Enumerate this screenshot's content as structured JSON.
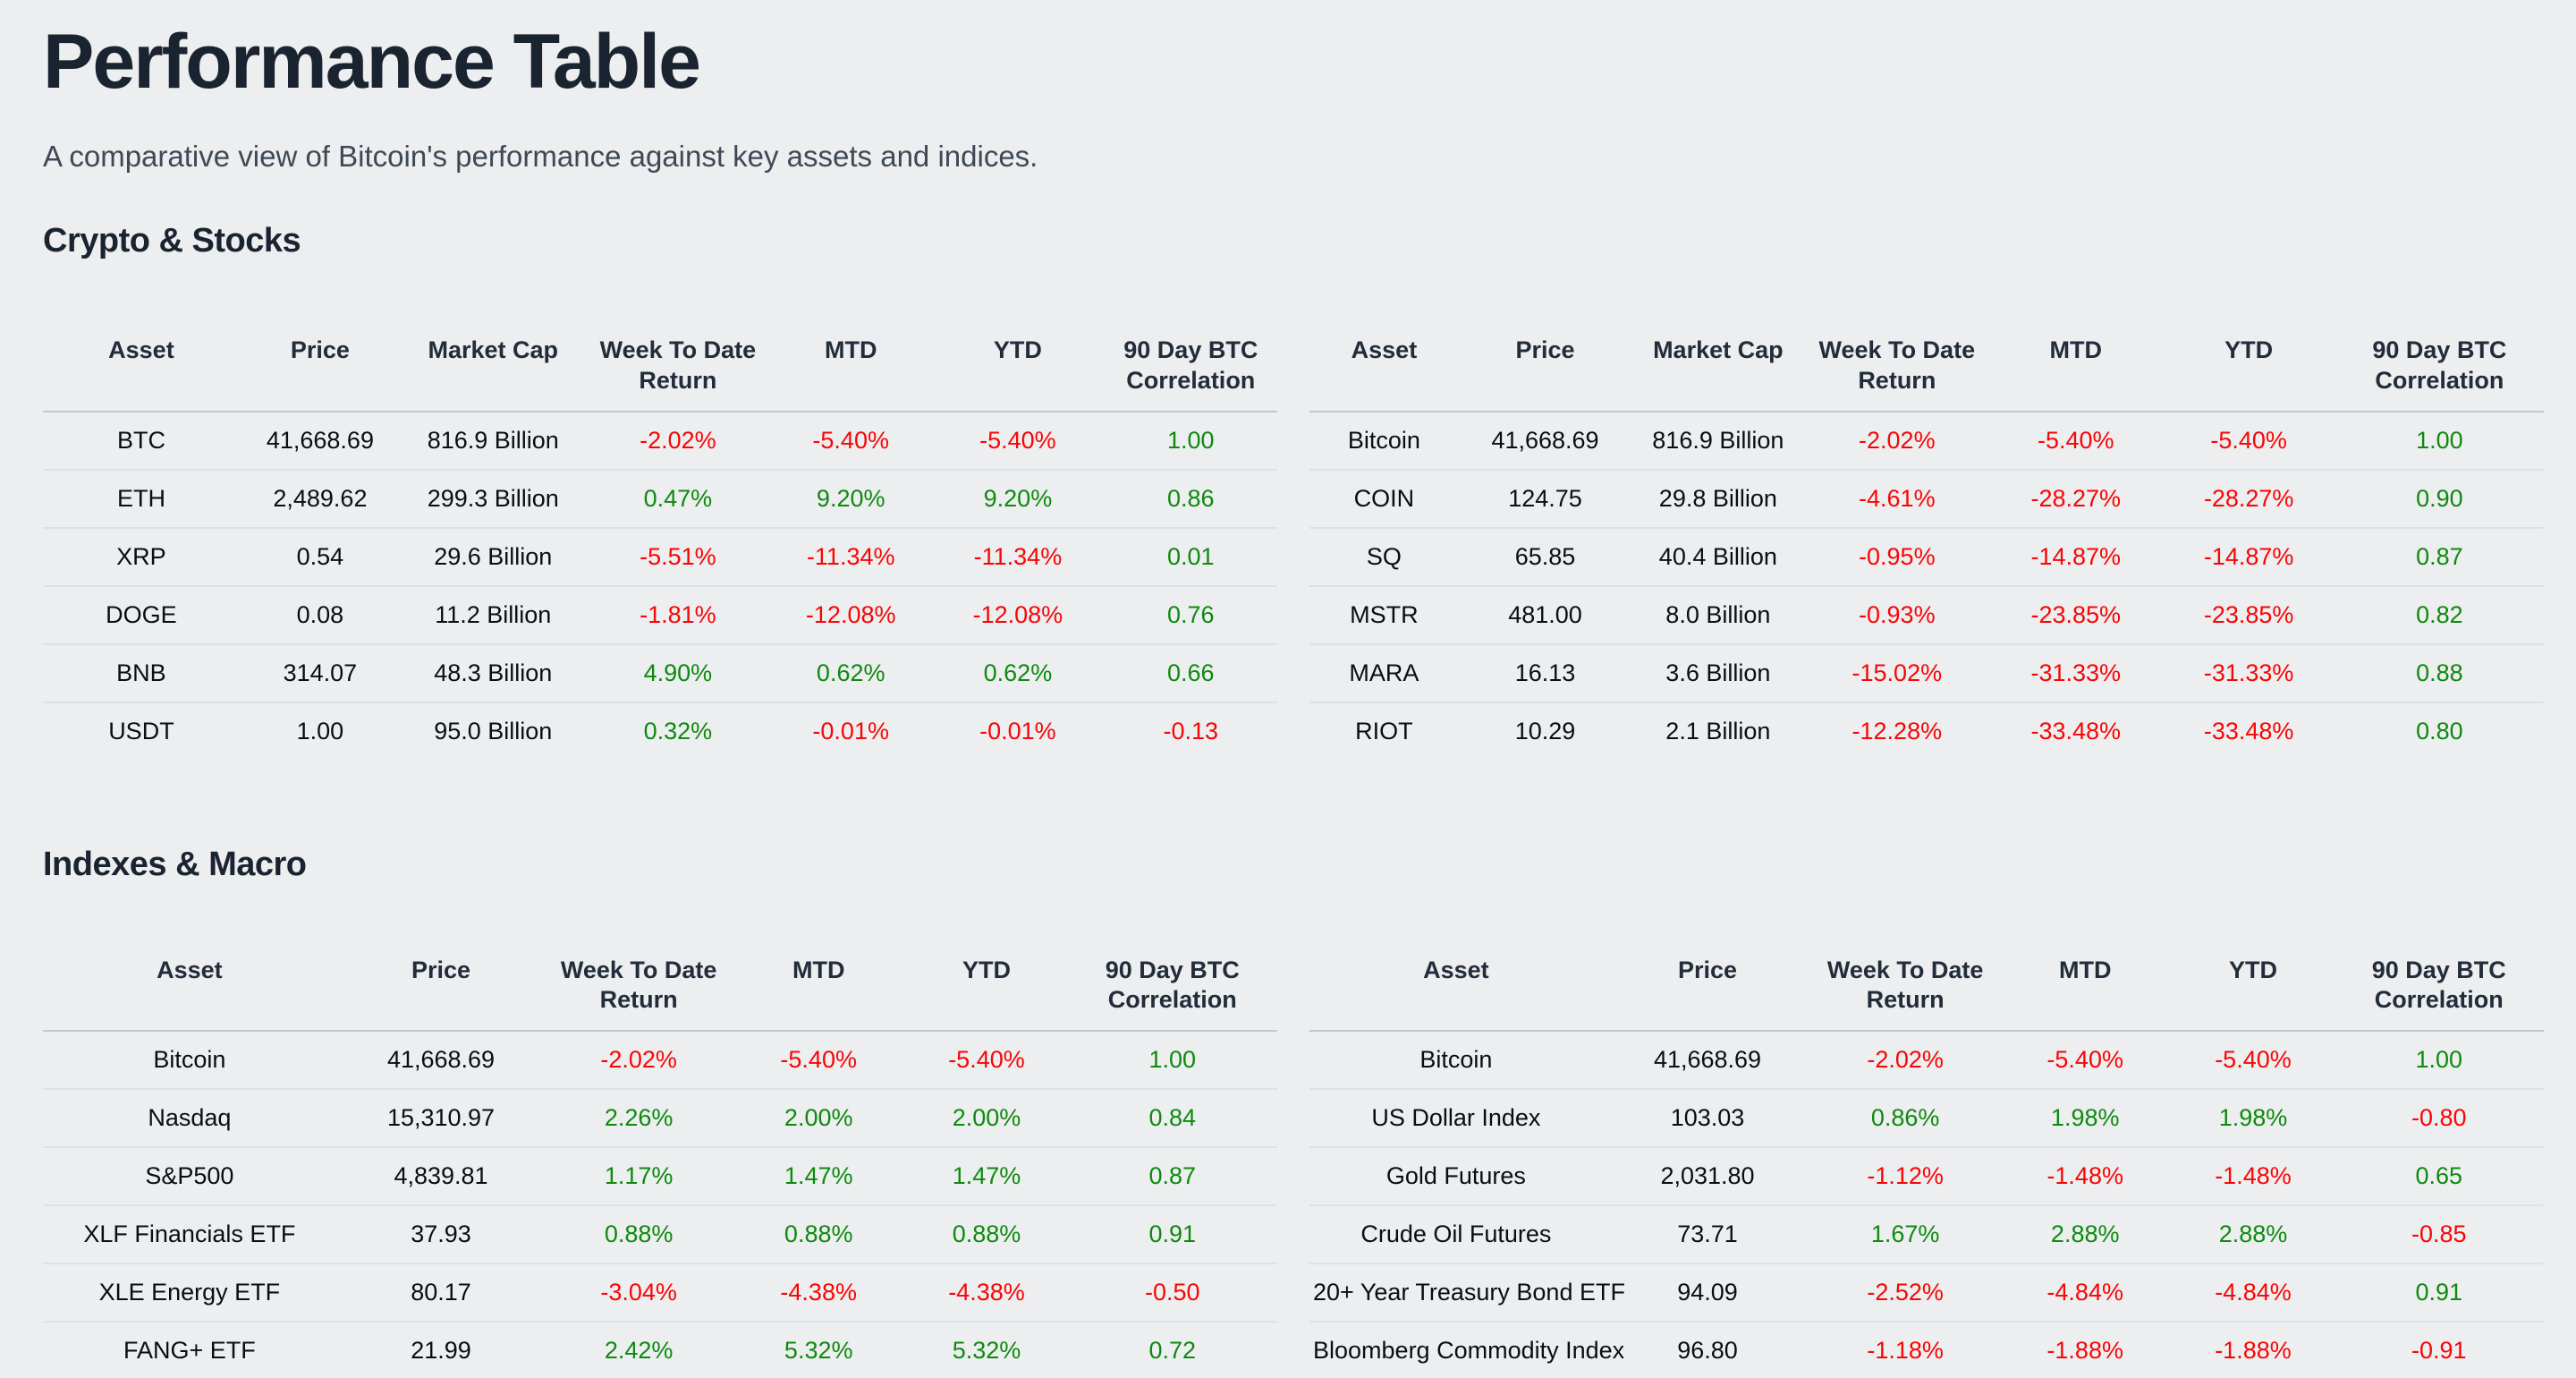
{
  "page": {
    "title": "Performance Table",
    "subtitle": "A comparative view of Bitcoin's performance against key assets and indices."
  },
  "colors": {
    "positive": "#0e8a0e",
    "negative": "#fa0505"
  },
  "sections": [
    {
      "title": "Crypto & Stocks",
      "tables": [
        {
          "columns": [
            "Asset",
            "Price",
            "Market Cap",
            "Week To Date Return",
            "MTD",
            "YTD",
            "90 Day BTC Correlation"
          ],
          "value_cols_start": 3,
          "rows": [
            [
              "BTC",
              "41,668.69",
              "816.9 Billion",
              "-2.02%",
              "-5.40%",
              "-5.40%",
              "1.00"
            ],
            [
              "ETH",
              "2,489.62",
              "299.3 Billion",
              "0.47%",
              "9.20%",
              "9.20%",
              "0.86"
            ],
            [
              "XRP",
              "0.54",
              "29.6 Billion",
              "-5.51%",
              "-11.34%",
              "-11.34%",
              "0.01"
            ],
            [
              "DOGE",
              "0.08",
              "11.2 Billion",
              "-1.81%",
              "-12.08%",
              "-12.08%",
              "0.76"
            ],
            [
              "BNB",
              "314.07",
              "48.3 Billion",
              "4.90%",
              "0.62%",
              "0.62%",
              "0.66"
            ],
            [
              "USDT",
              "1.00",
              "95.0 Billion",
              "0.32%",
              "-0.01%",
              "-0.01%",
              "-0.13"
            ]
          ]
        },
        {
          "columns": [
            "Asset",
            "Price",
            "Market Cap",
            "Week To Date Return",
            "MTD",
            "YTD",
            "90 Day BTC Correlation"
          ],
          "value_cols_start": 3,
          "rows": [
            [
              "Bitcoin",
              "41,668.69",
              "816.9 Billion",
              "-2.02%",
              "-5.40%",
              "-5.40%",
              "1.00"
            ],
            [
              "COIN",
              "124.75",
              "29.8 Billion",
              "-4.61%",
              "-28.27%",
              "-28.27%",
              "0.90"
            ],
            [
              "SQ",
              "65.85",
              "40.4 Billion",
              "-0.95%",
              "-14.87%",
              "-14.87%",
              "0.87"
            ],
            [
              "MSTR",
              "481.00",
              "8.0 Billion",
              "-0.93%",
              "-23.85%",
              "-23.85%",
              "0.82"
            ],
            [
              "MARA",
              "16.13",
              "3.6 Billion",
              "-15.02%",
              "-31.33%",
              "-31.33%",
              "0.88"
            ],
            [
              "RIOT",
              "10.29",
              "2.1 Billion",
              "-12.28%",
              "-33.48%",
              "-33.48%",
              "0.80"
            ]
          ]
        }
      ]
    },
    {
      "title": "Indexes & Macro",
      "tables": [
        {
          "columns": [
            "Asset",
            "Price",
            "Week To Date Return",
            "MTD",
            "YTD",
            "90 Day BTC Correlation"
          ],
          "value_cols_start": 2,
          "rows": [
            [
              "Bitcoin",
              "41,668.69",
              "-2.02%",
              "-5.40%",
              "-5.40%",
              "1.00"
            ],
            [
              "Nasdaq",
              "15,310.97",
              "2.26%",
              "2.00%",
              "2.00%",
              "0.84"
            ],
            [
              "S&P500",
              "4,839.81",
              "1.17%",
              "1.47%",
              "1.47%",
              "0.87"
            ],
            [
              "XLF Financials ETF",
              "37.93",
              "0.88%",
              "0.88%",
              "0.88%",
              "0.91"
            ],
            [
              "XLE Energy ETF",
              "80.17",
              "-3.04%",
              "-4.38%",
              "-4.38%",
              "-0.50"
            ],
            [
              "FANG+ ETF",
              "21.99",
              "2.42%",
              "5.32%",
              "5.32%",
              "0.72"
            ]
          ]
        },
        {
          "columns": [
            "Asset",
            "Price",
            "Week To Date Return",
            "MTD",
            "YTD",
            "90 Day BTC Correlation"
          ],
          "value_cols_start": 2,
          "rows": [
            [
              "Bitcoin",
              "41,668.69",
              "-2.02%",
              "-5.40%",
              "-5.40%",
              "1.00"
            ],
            [
              "US Dollar Index",
              "103.03",
              "0.86%",
              "1.98%",
              "1.98%",
              "-0.80"
            ],
            [
              "Gold Futures",
              "2,031.80",
              "-1.12%",
              "-1.48%",
              "-1.48%",
              "0.65"
            ],
            [
              "Crude Oil Futures",
              "73.71",
              "1.67%",
              "2.88%",
              "2.88%",
              "-0.85"
            ],
            [
              "20+ Year Treasury Bond ETF",
              "94.09",
              "-2.52%",
              "-4.84%",
              "-4.84%",
              "0.91"
            ],
            [
              "Bloomberg Commodity Index",
              "96.80",
              "-1.18%",
              "-1.88%",
              "-1.88%",
              "-0.91"
            ]
          ]
        }
      ]
    }
  ]
}
